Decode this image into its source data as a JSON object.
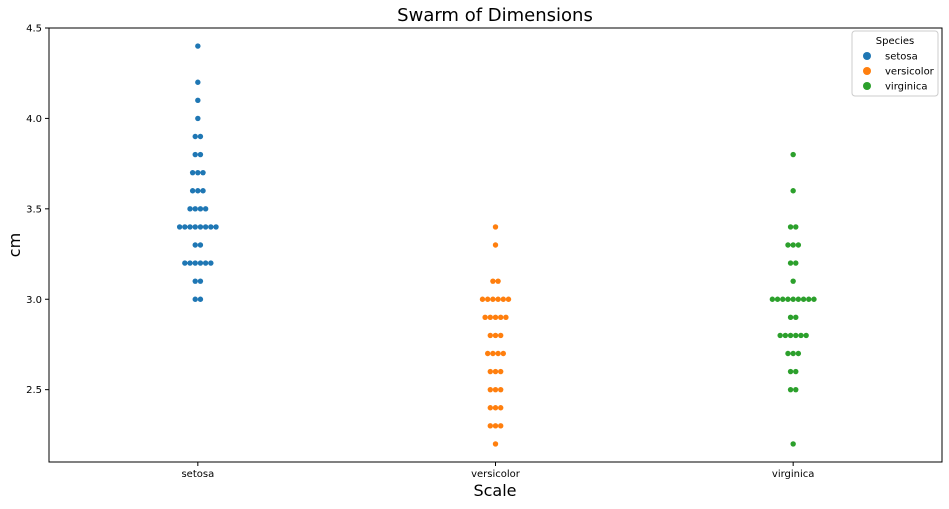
{
  "chart_data": {
    "type": "scatter",
    "subtype": "swarm",
    "title": "Swarm of Dimensions",
    "xlabel": "Scale",
    "ylabel": "cm",
    "categories": [
      "setosa",
      "versicolor",
      "virginica"
    ],
    "ylim": [
      2.1,
      4.5
    ],
    "yticks": [
      "2.5",
      "3.0",
      "3.5",
      "4.0",
      "4.5"
    ],
    "grid": false,
    "legend": {
      "title": "Species",
      "placement": "top-right",
      "entries": [
        {
          "name": "setosa",
          "color": "#1f77b4"
        },
        {
          "name": "versicolor",
          "color": "#ff7f0e"
        },
        {
          "name": "virginica",
          "color": "#2ca02c"
        }
      ]
    },
    "series": [
      {
        "name": "setosa",
        "category": "setosa",
        "color": "#1f77b4",
        "groups": [
          {
            "y": 3.0,
            "count": 2
          },
          {
            "y": 3.1,
            "count": 2
          },
          {
            "y": 3.2,
            "count": 6
          },
          {
            "y": 3.3,
            "count": 2
          },
          {
            "y": 3.4,
            "count": 8
          },
          {
            "y": 3.5,
            "count": 4
          },
          {
            "y": 3.6,
            "count": 3
          },
          {
            "y": 3.7,
            "count": 3
          },
          {
            "y": 3.8,
            "count": 2
          },
          {
            "y": 3.9,
            "count": 2
          },
          {
            "y": 4.0,
            "count": 1
          },
          {
            "y": 4.1,
            "count": 1
          },
          {
            "y": 4.2,
            "count": 1
          },
          {
            "y": 4.4,
            "count": 1
          }
        ]
      },
      {
        "name": "versicolor",
        "category": "versicolor",
        "color": "#ff7f0e",
        "groups": [
          {
            "y": 2.2,
            "count": 1
          },
          {
            "y": 2.3,
            "count": 3
          },
          {
            "y": 2.4,
            "count": 3
          },
          {
            "y": 2.5,
            "count": 3
          },
          {
            "y": 2.6,
            "count": 3
          },
          {
            "y": 2.7,
            "count": 4
          },
          {
            "y": 2.8,
            "count": 3
          },
          {
            "y": 2.9,
            "count": 5
          },
          {
            "y": 3.0,
            "count": 6
          },
          {
            "y": 3.1,
            "count": 2
          },
          {
            "y": 3.3,
            "count": 1
          },
          {
            "y": 3.4,
            "count": 1
          }
        ]
      },
      {
        "name": "virginica",
        "category": "virginica",
        "color": "#2ca02c",
        "groups": [
          {
            "y": 2.2,
            "count": 1
          },
          {
            "y": 2.5,
            "count": 2
          },
          {
            "y": 2.6,
            "count": 2
          },
          {
            "y": 2.7,
            "count": 3
          },
          {
            "y": 2.8,
            "count": 6
          },
          {
            "y": 2.9,
            "count": 2
          },
          {
            "y": 3.0,
            "count": 9
          },
          {
            "y": 3.1,
            "count": 1
          },
          {
            "y": 3.2,
            "count": 2
          },
          {
            "y": 3.3,
            "count": 3
          },
          {
            "y": 3.4,
            "count": 2
          },
          {
            "y": 3.6,
            "count": 1
          },
          {
            "y": 3.8,
            "count": 1
          }
        ]
      }
    ]
  }
}
